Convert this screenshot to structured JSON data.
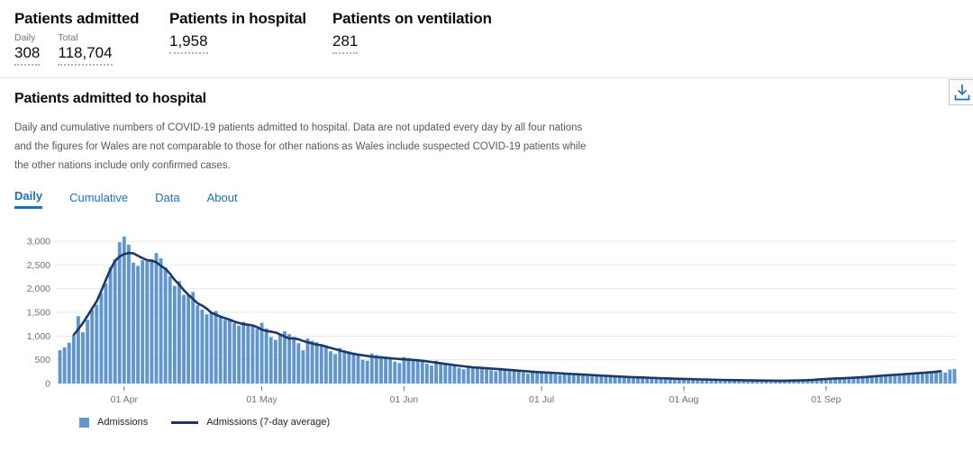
{
  "header_stats": {
    "admitted": {
      "title": "Patients admitted",
      "daily_label": "Daily",
      "daily_value": "308",
      "total_label": "Total",
      "total_value": "118,704"
    },
    "in_hospital": {
      "title": "Patients in hospital",
      "value": "1,958"
    },
    "ventilation": {
      "title": "Patients on ventilation",
      "value": "281"
    }
  },
  "card": {
    "title": "Patients admitted to hospital",
    "description": "Daily and cumulative numbers of COVID-19 patients admitted to hospital. Data are not updated every day by all four nations and the figures for Wales are not comparable to those for other nations as Wales include suspected COVID-19 patients while the other nations include only confirmed cases.",
    "download_icon": "download-icon",
    "tabs": [
      {
        "label": "Daily",
        "active": true
      },
      {
        "label": "Cumulative",
        "active": false
      },
      {
        "label": "Data",
        "active": false
      },
      {
        "label": "About",
        "active": false
      }
    ]
  },
  "chart_data": {
    "type": "bar",
    "title": "",
    "xlabel": "",
    "ylabel": "",
    "start_date": "18 Mar 2020",
    "end_date": "29 Sep 2020",
    "x_tick_labels": [
      "01 Apr",
      "01 May",
      "01 Jun",
      "01 Jul",
      "01 Aug",
      "01 Sep"
    ],
    "x_tick_indices": [
      14,
      44,
      75,
      105,
      136,
      167
    ],
    "y_ticks": [
      0,
      500,
      1000,
      1500,
      2000,
      2500,
      3000
    ],
    "y_tick_labels": [
      "0",
      "500",
      "1,000",
      "1,500",
      "2,000",
      "2,500",
      "3,000"
    ],
    "ylim": [
      0,
      3000
    ],
    "grid": "horizontal",
    "legend_position": "bottom-left",
    "colors": {
      "bar": "#6195cd",
      "line": "#1b3867",
      "gridline": "#e6e7e9",
      "axis_text": "#6b7276"
    },
    "series": [
      {
        "name": "Admissions",
        "type": "bar",
        "values": [
          700,
          760,
          860,
          1000,
          1420,
          1080,
          1340,
          1560,
          1660,
          1910,
          2110,
          2450,
          2620,
          2980,
          3100,
          2930,
          2550,
          2480,
          2600,
          2580,
          2620,
          2750,
          2640,
          2450,
          2260,
          2060,
          2160,
          1870,
          1860,
          1930,
          1650,
          1560,
          1460,
          1510,
          1530,
          1400,
          1340,
          1360,
          1270,
          1220,
          1300,
          1250,
          1200,
          1160,
          1280,
          1160,
          980,
          920,
          1050,
          1100,
          1040,
          980,
          850,
          700,
          950,
          900,
          870,
          830,
          800,
          680,
          620,
          750,
          700,
          680,
          650,
          620,
          500,
          480,
          630,
          600,
          580,
          560,
          540,
          460,
          430,
          560,
          540,
          520,
          510,
          500,
          420,
          380,
          480,
          450,
          430,
          420,
          400,
          330,
          300,
          380,
          360,
          350,
          340,
          330,
          280,
          260,
          330,
          310,
          300,
          290,
          280,
          230,
          210,
          270,
          260,
          250,
          240,
          230,
          190,
          180,
          230,
          220,
          210,
          200,
          190,
          160,
          150,
          190,
          180,
          170,
          160,
          150,
          130,
          120,
          150,
          140,
          135,
          130,
          125,
          105,
          100,
          120,
          115,
          110,
          105,
          100,
          85,
          80,
          100,
          95,
          90,
          85,
          80,
          70,
          65,
          80,
          75,
          75,
          70,
          70,
          60,
          55,
          70,
          65,
          65,
          60,
          60,
          50,
          50,
          65,
          60,
          65,
          70,
          75,
          65,
          70,
          80,
          100,
          110,
          120,
          115,
          110,
          100,
          105,
          130,
          140,
          150,
          160,
          150,
          140,
          170,
          180,
          190,
          200,
          210,
          190,
          185,
          220,
          230,
          240,
          250,
          260,
          235,
          230,
          295,
          308
        ]
      },
      {
        "name": "Admissions (7-day average)",
        "type": "line",
        "derived": "centered 7-day mean of Admissions"
      }
    ],
    "legend": [
      {
        "label": "Admissions",
        "swatch": "square"
      },
      {
        "label": "Admissions (7-day average)",
        "swatch": "line"
      }
    ]
  }
}
